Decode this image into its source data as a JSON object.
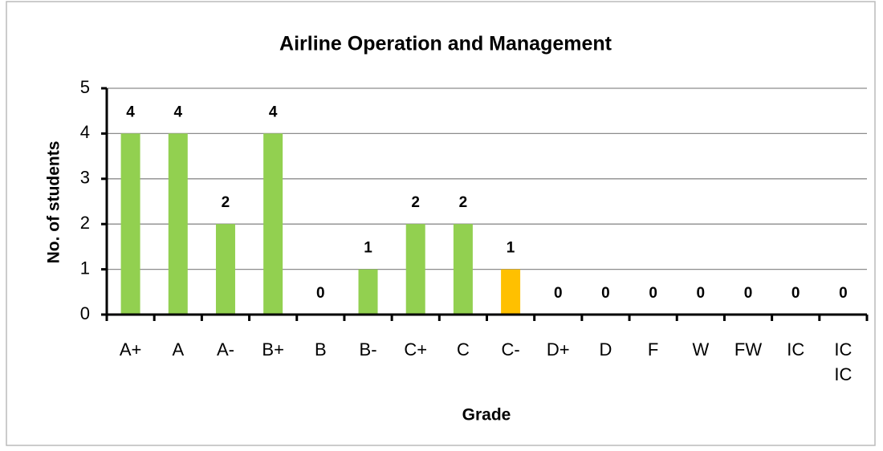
{
  "chart_data": {
    "type": "bar",
    "title": "Airline Operation and Management",
    "x_label": "Grade",
    "y_label": "No. of students",
    "categories": [
      "A+",
      "A",
      "A-",
      "B+",
      "B",
      "B-",
      "C+",
      "C",
      "C-",
      "D+",
      "D",
      "F",
      "W",
      "FW",
      "IC",
      "IC IC"
    ],
    "values": [
      4,
      4,
      2,
      4,
      0,
      1,
      2,
      2,
      1,
      0,
      0,
      0,
      0,
      0,
      0,
      0
    ],
    "colors": [
      "#92d050",
      "#92d050",
      "#92d050",
      "#92d050",
      "#92d050",
      "#92d050",
      "#92d050",
      "#92d050",
      "#ffc000",
      "#92d050",
      "#92d050",
      "#92d050",
      "#92d050",
      "#92d050",
      "#92d050",
      "#92d050"
    ],
    "ylim": [
      0,
      5
    ],
    "yticks": [
      0,
      1,
      2,
      3,
      4,
      5
    ],
    "grid": true
  }
}
